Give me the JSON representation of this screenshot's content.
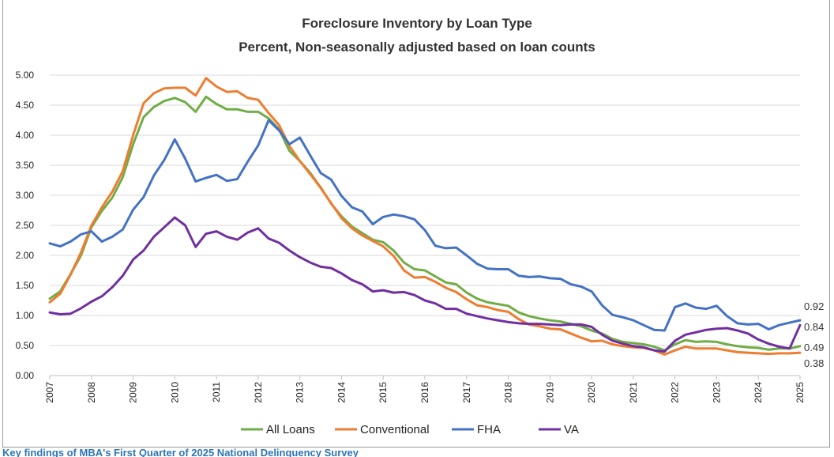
{
  "caption": "Key findings of MBA's First Quarter of 2025 National Delinquency Survey",
  "chart_data": {
    "type": "line",
    "title": "Foreclosure Inventory by Loan Type",
    "subtitle": "Percent, Non-seasonally adjusted based on loan counts",
    "xlabel": "",
    "ylabel": "",
    "xlim": [
      2007.0,
      2025.0
    ],
    "ylim": [
      0,
      5
    ],
    "y_ticks": [
      "0.00",
      "0.50",
      "1.00",
      "1.50",
      "2.00",
      "2.50",
      "3.00",
      "3.50",
      "4.00",
      "4.50",
      "5.00"
    ],
    "x_ticks": [
      "2007",
      "2008",
      "2009",
      "2010",
      "2011",
      "2012",
      "2013",
      "2014",
      "2015",
      "2016",
      "2017",
      "2018",
      "2019",
      "2020",
      "2021",
      "2022",
      "2023",
      "2024",
      "2025"
    ],
    "grid": "horizontal",
    "legend": "bottom",
    "x": [
      2007.0,
      2007.25,
      2007.5,
      2007.75,
      2008.0,
      2008.25,
      2008.5,
      2008.75,
      2009.0,
      2009.25,
      2009.5,
      2009.75,
      2010.0,
      2010.25,
      2010.5,
      2010.75,
      2011.0,
      2011.25,
      2011.5,
      2011.75,
      2012.0,
      2012.25,
      2012.5,
      2012.75,
      2013.0,
      2013.25,
      2013.5,
      2013.75,
      2014.0,
      2014.25,
      2014.5,
      2014.75,
      2015.0,
      2015.25,
      2015.5,
      2015.75,
      2016.0,
      2016.25,
      2016.5,
      2016.75,
      2017.0,
      2017.25,
      2017.5,
      2017.75,
      2018.0,
      2018.25,
      2018.5,
      2018.75,
      2019.0,
      2019.25,
      2019.5,
      2019.75,
      2020.0,
      2020.25,
      2020.5,
      2020.75,
      2021.0,
      2021.25,
      2021.5,
      2021.75,
      2022.0,
      2022.25,
      2022.5,
      2022.75,
      2023.0,
      2023.25,
      2023.5,
      2023.75,
      2024.0,
      2024.25,
      2024.5,
      2024.75,
      2025.0
    ],
    "series": [
      {
        "name": "All Loans",
        "color": "#70ad47",
        "end_label": "0.49",
        "values": [
          1.28,
          1.4,
          1.69,
          2.0,
          2.47,
          2.74,
          2.96,
          3.3,
          3.85,
          4.3,
          4.47,
          4.57,
          4.62,
          4.55,
          4.39,
          4.64,
          4.52,
          4.43,
          4.43,
          4.39,
          4.39,
          4.28,
          4.1,
          3.74,
          3.57,
          3.37,
          3.13,
          2.86,
          2.65,
          2.48,
          2.37,
          2.26,
          2.22,
          2.08,
          1.88,
          1.77,
          1.75,
          1.65,
          1.55,
          1.52,
          1.38,
          1.28,
          1.22,
          1.19,
          1.16,
          1.05,
          0.99,
          0.95,
          0.92,
          0.9,
          0.86,
          0.82,
          0.75,
          0.7,
          0.61,
          0.56,
          0.54,
          0.52,
          0.48,
          0.42,
          0.52,
          0.59,
          0.56,
          0.57,
          0.56,
          0.52,
          0.49,
          0.47,
          0.46,
          0.43,
          0.45,
          0.45,
          0.49
        ]
      },
      {
        "name": "Conventional",
        "color": "#ed7d31",
        "end_label": "0.38",
        "values": [
          1.22,
          1.36,
          1.68,
          2.05,
          2.5,
          2.8,
          3.06,
          3.4,
          4.0,
          4.53,
          4.7,
          4.78,
          4.79,
          4.79,
          4.66,
          4.95,
          4.81,
          4.72,
          4.73,
          4.62,
          4.59,
          4.37,
          4.17,
          3.82,
          3.57,
          3.35,
          3.12,
          2.87,
          2.62,
          2.45,
          2.33,
          2.24,
          2.15,
          1.99,
          1.75,
          1.63,
          1.64,
          1.56,
          1.46,
          1.39,
          1.27,
          1.17,
          1.14,
          1.09,
          1.06,
          0.94,
          0.85,
          0.82,
          0.78,
          0.77,
          0.7,
          0.63,
          0.57,
          0.58,
          0.52,
          0.49,
          0.47,
          0.46,
          0.42,
          0.35,
          0.42,
          0.48,
          0.45,
          0.45,
          0.45,
          0.42,
          0.39,
          0.38,
          0.37,
          0.36,
          0.37,
          0.37,
          0.38
        ]
      },
      {
        "name": "FHA",
        "color": "#4472c4",
        "end_label": "0.92",
        "values": [
          2.2,
          2.15,
          2.23,
          2.35,
          2.4,
          2.23,
          2.31,
          2.43,
          2.76,
          2.97,
          3.33,
          3.59,
          3.93,
          3.61,
          3.23,
          3.29,
          3.34,
          3.24,
          3.27,
          3.56,
          3.83,
          4.25,
          4.08,
          3.85,
          3.96,
          3.66,
          3.37,
          3.26,
          2.99,
          2.8,
          2.73,
          2.52,
          2.64,
          2.68,
          2.65,
          2.6,
          2.42,
          2.16,
          2.12,
          2.13,
          2.0,
          1.86,
          1.78,
          1.77,
          1.77,
          1.66,
          1.64,
          1.65,
          1.62,
          1.61,
          1.52,
          1.48,
          1.4,
          1.17,
          1.01,
          0.97,
          0.92,
          0.84,
          0.76,
          0.75,
          1.14,
          1.2,
          1.13,
          1.11,
          1.16,
          0.99,
          0.87,
          0.85,
          0.86,
          0.77,
          0.84,
          0.88,
          0.92
        ]
      },
      {
        "name": "VA",
        "color": "#7030a0",
        "end_label": "0.84",
        "values": [
          1.05,
          1.02,
          1.03,
          1.12,
          1.23,
          1.32,
          1.47,
          1.66,
          1.93,
          2.08,
          2.31,
          2.47,
          2.63,
          2.5,
          2.14,
          2.36,
          2.4,
          2.31,
          2.26,
          2.38,
          2.45,
          2.28,
          2.21,
          2.08,
          1.97,
          1.88,
          1.81,
          1.79,
          1.7,
          1.59,
          1.52,
          1.4,
          1.42,
          1.38,
          1.39,
          1.34,
          1.25,
          1.2,
          1.11,
          1.11,
          1.03,
          0.99,
          0.95,
          0.92,
          0.89,
          0.87,
          0.86,
          0.86,
          0.85,
          0.84,
          0.85,
          0.85,
          0.81,
          0.68,
          0.58,
          0.53,
          0.49,
          0.47,
          0.42,
          0.4,
          0.58,
          0.68,
          0.72,
          0.76,
          0.78,
          0.79,
          0.75,
          0.7,
          0.6,
          0.53,
          0.48,
          0.45,
          0.84
        ]
      }
    ]
  }
}
